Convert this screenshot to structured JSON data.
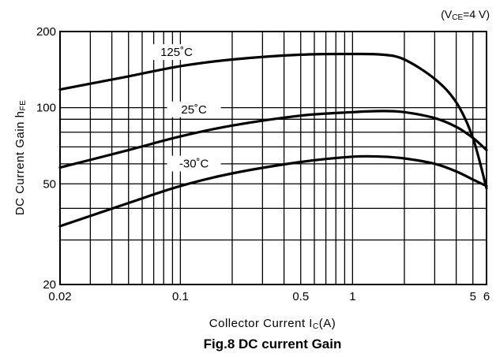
{
  "chart_data": {
    "type": "line",
    "caption": "Fig.8  DC current Gain",
    "condition": {
      "prefix": "(V",
      "sub": "CE",
      "suffix": "=4 V)"
    },
    "xlabel": {
      "main": "Collector Current  I",
      "sub": "C",
      "suffix": "(A)"
    },
    "ylabel": {
      "main": "DC Current Gain  h",
      "sub": "FE"
    },
    "x_scale": "log",
    "y_scale": "log",
    "xlim": [
      0.02,
      6
    ],
    "ylim": [
      20,
      200
    ],
    "x_ticks": [
      {
        "value": 0.02,
        "label": "0.02"
      },
      {
        "value": 0.1,
        "label": "0.1"
      },
      {
        "value": 0.5,
        "label": "0.5"
      },
      {
        "value": 1,
        "label": "1"
      },
      {
        "value": 5,
        "label": "5"
      },
      {
        "value": 6,
        "label": "6"
      }
    ],
    "y_ticks": [
      {
        "value": 20,
        "label": "20"
      },
      {
        "value": 50,
        "label": "50"
      },
      {
        "value": 100,
        "label": "100"
      },
      {
        "value": 200,
        "label": "200"
      }
    ],
    "x_grid": [
      0.02,
      0.03,
      0.04,
      0.05,
      0.06,
      0.07,
      0.08,
      0.09,
      0.1,
      0.2,
      0.3,
      0.4,
      0.5,
      0.6,
      0.7,
      0.8,
      0.9,
      1,
      2,
      3,
      4,
      5,
      6
    ],
    "y_grid": [
      20,
      30,
      40,
      50,
      60,
      70,
      80,
      90,
      100,
      200
    ],
    "grid": true,
    "series": [
      {
        "name": "125˚C",
        "label_at": {
          "x": 0.095,
          "y": 160
        },
        "points": [
          [
            0.02,
            118
          ],
          [
            0.05,
            133
          ],
          [
            0.1,
            146
          ],
          [
            0.2,
            155
          ],
          [
            0.5,
            162
          ],
          [
            1,
            163
          ],
          [
            1.5,
            162
          ],
          [
            2,
            155
          ],
          [
            3,
            130
          ],
          [
            4,
            105
          ],
          [
            5,
            76
          ],
          [
            6,
            48
          ]
        ]
      },
      {
        "name": "25˚C",
        "label_at": {
          "x": 0.12,
          "y": 95
        },
        "points": [
          [
            0.02,
            58
          ],
          [
            0.05,
            68
          ],
          [
            0.1,
            77
          ],
          [
            0.2,
            85
          ],
          [
            0.5,
            93
          ],
          [
            1,
            96
          ],
          [
            1.5,
            97
          ],
          [
            2,
            96
          ],
          [
            3,
            91
          ],
          [
            4,
            84
          ],
          [
            5,
            76
          ],
          [
            6,
            68
          ]
        ]
      },
      {
        "name": "-30˚C",
        "label_at": {
          "x": 0.12,
          "y": 58
        },
        "points": [
          [
            0.02,
            34
          ],
          [
            0.05,
            42
          ],
          [
            0.1,
            49
          ],
          [
            0.2,
            55
          ],
          [
            0.5,
            61
          ],
          [
            1,
            64
          ],
          [
            1.5,
            64
          ],
          [
            2,
            63
          ],
          [
            3,
            60
          ],
          [
            4,
            56
          ],
          [
            5,
            52
          ],
          [
            6,
            49
          ]
        ]
      }
    ]
  }
}
